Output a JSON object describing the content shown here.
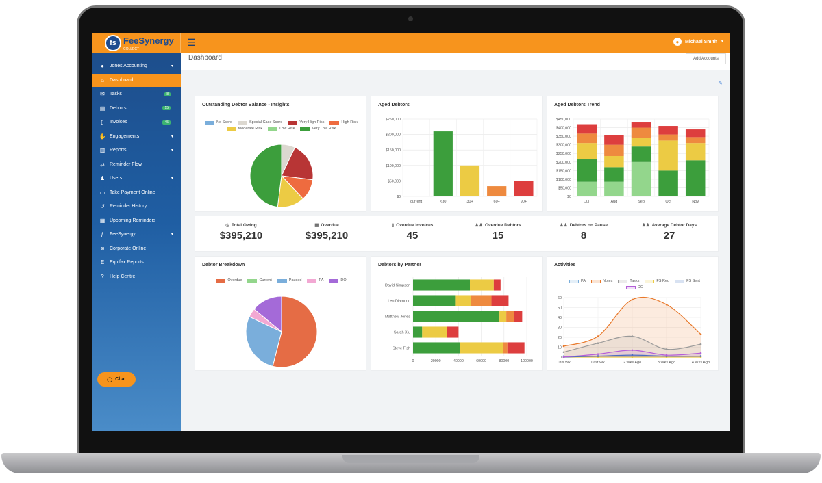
{
  "app": {
    "logo_initials": "fs",
    "logo_name": "FeeSynergy",
    "logo_sub": "COLLECT",
    "user_name": "Michael Smith"
  },
  "sidebar": {
    "items": [
      {
        "label": "Jones Accounting",
        "icon": "user-circle-icon",
        "glyph": "●",
        "caret": true
      },
      {
        "label": "Dashboard",
        "icon": "home-icon",
        "glyph": "⌂",
        "active": true
      },
      {
        "label": "Tasks",
        "icon": "envelope-icon",
        "glyph": "✉",
        "badge": "8"
      },
      {
        "label": "Debtors",
        "icon": "id-card-icon",
        "glyph": "▤",
        "badge": "15"
      },
      {
        "label": "Invoices",
        "icon": "file-icon",
        "glyph": "▯",
        "badge": "45"
      },
      {
        "label": "Engagements",
        "icon": "handshake-icon",
        "glyph": "✋",
        "caret": true
      },
      {
        "label": "Reports",
        "icon": "bar-chart-icon",
        "glyph": "▥",
        "caret": true
      },
      {
        "label": "Reminder Flow",
        "icon": "exchange-icon",
        "glyph": "⇄"
      },
      {
        "label": "Users",
        "icon": "user-icon",
        "glyph": "♟",
        "caret": true
      },
      {
        "label": "Take Payment Online",
        "icon": "credit-card-icon",
        "glyph": "▭"
      },
      {
        "label": "Reminder History",
        "icon": "history-icon",
        "glyph": "↺"
      },
      {
        "label": "Upcoming Reminders",
        "icon": "calendar-icon",
        "glyph": "▦"
      },
      {
        "label": "FeeSynergy",
        "icon": "feesynergy-icon",
        "glyph": "ƒ",
        "caret": true
      },
      {
        "label": "Corporate Online",
        "icon": "corporate-online-icon",
        "glyph": "≋"
      },
      {
        "label": "Equifax Reports",
        "icon": "equifax-icon",
        "glyph": "E"
      },
      {
        "label": "Help Centre",
        "icon": "question-icon",
        "glyph": "?"
      }
    ],
    "chat_label": "Chat"
  },
  "header": {
    "title": "Dashboard",
    "add_accounts_label": "Add Accounts"
  },
  "cards": {
    "insights_title": "Outstanding Debtor Balance - Insights",
    "aged_title": "Aged Debtors",
    "trend_title": "Aged Debtors Trend",
    "breakdown_title": "Debtor Breakdown",
    "partner_title": "Debtors by Partner",
    "activities_title": "Activities"
  },
  "stats": [
    {
      "label": "Total Owing",
      "value": "$395,210",
      "icon": "clock-icon",
      "glyph": "◷"
    },
    {
      "label": "Overdue",
      "value": "$395,210",
      "icon": "calendar-icon",
      "glyph": "▦"
    },
    {
      "label": "Overdue Invoices",
      "value": "45",
      "icon": "file-icon",
      "glyph": "▯"
    },
    {
      "label": "Overdue Debtors",
      "value": "15",
      "icon": "users-icon",
      "glyph": "♟♟"
    },
    {
      "label": "Debtors on Pause",
      "value": "8",
      "icon": "users-icon",
      "glyph": "♟♟"
    },
    {
      "label": "Average Debtor Days",
      "value": "27",
      "icon": "users-icon",
      "glyph": "♟♟"
    }
  ],
  "colors": {
    "accent": "#f7941d",
    "sidebar": "#1d4e8c",
    "green": "#3c9e3c",
    "yellow": "#eccb44",
    "orange": "#ee8a3f",
    "red": "#dd3e3e",
    "dark_red": "#b83535",
    "light_green": "#93d68c",
    "blue": "#7aaedb",
    "pink": "#f2a8d3",
    "purple": "#a46ad8",
    "grey": "#dcd8d0"
  },
  "chart_data": [
    {
      "type": "pie",
      "title": "Outstanding Debtor Balance - Insights",
      "labels": [
        "No Score",
        "Special Case Score",
        "Very High Risk",
        "High Risk",
        "Moderate Risk",
        "Low Risk",
        "Very Low Risk"
      ],
      "colors": [
        "#7aaedb",
        "#dcd8d0",
        "#b83535",
        "#ee6b3f",
        "#eccb44",
        "#93d68c",
        "#3c9e3c"
      ],
      "values": [
        0,
        7,
        20,
        11,
        14,
        0,
        48
      ]
    },
    {
      "type": "bar",
      "title": "Aged Debtors",
      "categories": [
        "current",
        "<30",
        "30+",
        "60+",
        "90+"
      ],
      "values": [
        0,
        210000,
        100000,
        33000,
        50000
      ],
      "colors": [
        "#3c9e3c",
        "#3c9e3c",
        "#eccb44",
        "#ee8a3f",
        "#dd3e3e"
      ],
      "ylim": [
        0,
        250000
      ],
      "yticks": [
        "$0",
        "$50,000",
        "$100,000",
        "$150,000",
        "$200,000",
        "$250,000"
      ]
    },
    {
      "type": "bar",
      "stacked": true,
      "title": "Aged Debtors Trend",
      "categories": [
        "Jul",
        "Aug",
        "Sep",
        "Oct",
        "Nov"
      ],
      "series": [
        {
          "values": [
            85000,
            85000,
            200000,
            0,
            0
          ],
          "color": "#93d68c"
        },
        {
          "values": [
            130000,
            85000,
            90000,
            150000,
            210000
          ],
          "color": "#3c9e3c"
        },
        {
          "values": [
            95000,
            65000,
            50000,
            175000,
            100000
          ],
          "color": "#eccb44"
        },
        {
          "values": [
            55000,
            65000,
            60000,
            35000,
            35000
          ],
          "color": "#ee8a3f"
        },
        {
          "values": [
            55000,
            55000,
            30000,
            50000,
            45000
          ],
          "color": "#dd3e3e"
        }
      ],
      "ylim": [
        0,
        450000
      ],
      "yticks": [
        "$0",
        "$50,000",
        "$100,000",
        "$150,000",
        "$200,000",
        "$250,000",
        "$300,000",
        "$350,000",
        "$400,000",
        "$450,000"
      ]
    },
    {
      "type": "pie",
      "title": "Debtor Breakdown",
      "labels": [
        "Overdue",
        "Current",
        "Paused",
        "PA",
        "DO"
      ],
      "colors": [
        "#e56c45",
        "#93d68c",
        "#7aaedb",
        "#f2a8d3",
        "#a46ad8"
      ],
      "values": [
        54,
        0,
        28,
        4,
        14
      ]
    },
    {
      "type": "bar",
      "horizontal": true,
      "stacked": true,
      "title": "Debtors by Partner",
      "categories": [
        "David Simpson",
        "Leo Diamond",
        "Matthew Jones",
        "Sarah Xiu",
        "Steve Fish"
      ],
      "series": [
        {
          "values": [
            50000,
            37000,
            76000,
            8000,
            41000
          ],
          "color": "#3c9e3c"
        },
        {
          "values": [
            21000,
            14000,
            6000,
            22000,
            38000
          ],
          "color": "#eccb44"
        },
        {
          "values": [
            0,
            18000,
            7000,
            0,
            4000
          ],
          "color": "#ee8a3f"
        },
        {
          "values": [
            6000,
            15000,
            7000,
            10000,
            15000
          ],
          "color": "#dd3e3e"
        }
      ],
      "xlim": [
        0,
        100000
      ],
      "xticks": [
        "0",
        "20000",
        "40000",
        "60000",
        "80000",
        "100000"
      ]
    },
    {
      "type": "line",
      "title": "Activities",
      "categories": [
        "This Wk",
        "Last Wk",
        "2 Wks Ago",
        "3 Wks Ago",
        "4 Wks Ago"
      ],
      "series": [
        {
          "name": "PA",
          "color": "#7aaedb",
          "values": [
            1,
            1,
            1,
            1,
            1
          ]
        },
        {
          "name": "Notes",
          "color": "#e8782a",
          "values": [
            11,
            21,
            58,
            53,
            23
          ]
        },
        {
          "name": "Tasks",
          "color": "#999999",
          "values": [
            5,
            14,
            21,
            8,
            13
          ]
        },
        {
          "name": "FS Req",
          "color": "#eccb44",
          "values": [
            0,
            0,
            0,
            0,
            0
          ]
        },
        {
          "name": "FS Sent",
          "color": "#3a6fc0",
          "values": [
            0,
            1,
            2,
            1,
            1
          ]
        },
        {
          "name": "DO",
          "color": "#b45ed8",
          "values": [
            0,
            3,
            7,
            2,
            4
          ]
        }
      ],
      "ylim": [
        0,
        60
      ],
      "yticks": [
        "0",
        "10",
        "20",
        "30",
        "40",
        "50",
        "60"
      ]
    }
  ]
}
